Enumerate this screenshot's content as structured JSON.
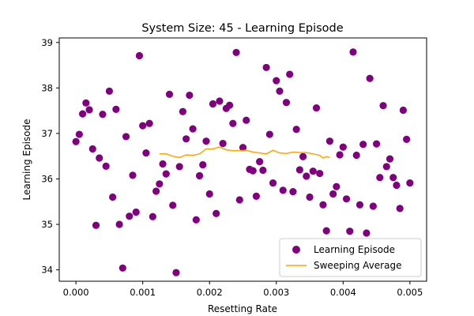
{
  "chart_data": {
    "type": "scatter",
    "title": "System Size: 45 - Learning Episode",
    "xlabel": "Resetting Rate",
    "ylabel": "Learning Episode",
    "xlim": [
      -0.00025,
      0.00525
    ],
    "ylim": [
      33.75,
      39.1
    ],
    "xticks": [
      0.0,
      0.001,
      0.002,
      0.003,
      0.004,
      0.005
    ],
    "xtick_labels": [
      "0.000",
      "0.001",
      "0.002",
      "0.003",
      "0.004",
      "0.005"
    ],
    "yticks": [
      34,
      35,
      36,
      37,
      38,
      39
    ],
    "ytick_labels": [
      "34",
      "35",
      "36",
      "37",
      "38",
      "39"
    ],
    "grid": false,
    "legend_position": "lower-right",
    "series": [
      {
        "name": "Learning Episode",
        "kind": "scatter",
        "color": "#800080",
        "points": [
          [
            0.0,
            36.82
          ],
          [
            5e-05,
            36.98
          ],
          [
            0.0001,
            37.43
          ],
          [
            0.00015,
            37.67
          ],
          [
            0.0002,
            37.52
          ],
          [
            0.00025,
            36.66
          ],
          [
            0.0003,
            34.98
          ],
          [
            0.00035,
            36.46
          ],
          [
            0.0004,
            37.42
          ],
          [
            0.00045,
            36.28
          ],
          [
            0.0005,
            37.93
          ],
          [
            0.00055,
            35.6
          ],
          [
            0.0006,
            37.53
          ],
          [
            0.00065,
            35.0
          ],
          [
            0.0007,
            34.04
          ],
          [
            0.00075,
            36.93
          ],
          [
            0.0008,
            35.18
          ],
          [
            0.00085,
            36.08
          ],
          [
            0.0009,
            35.27
          ],
          [
            0.00095,
            38.71
          ],
          [
            0.001,
            37.17
          ],
          [
            0.00105,
            36.57
          ],
          [
            0.0011,
            37.22
          ],
          [
            0.00115,
            35.17
          ],
          [
            0.0012,
            35.73
          ],
          [
            0.00125,
            35.89
          ],
          [
            0.0013,
            36.33
          ],
          [
            0.00135,
            36.11
          ],
          [
            0.0014,
            37.86
          ],
          [
            0.00145,
            35.42
          ],
          [
            0.0015,
            33.94
          ],
          [
            0.00155,
            36.27
          ],
          [
            0.0016,
            37.48
          ],
          [
            0.00165,
            36.88
          ],
          [
            0.0017,
            37.84
          ],
          [
            0.00175,
            37.1
          ],
          [
            0.0018,
            35.1
          ],
          [
            0.00185,
            36.07
          ],
          [
            0.0019,
            36.31
          ],
          [
            0.00195,
            36.83
          ],
          [
            0.002,
            35.67
          ],
          [
            0.00205,
            37.65
          ],
          [
            0.0021,
            35.24
          ],
          [
            0.00215,
            37.71
          ],
          [
            0.0022,
            36.78
          ],
          [
            0.00225,
            37.55
          ],
          [
            0.0023,
            37.62
          ],
          [
            0.00235,
            37.22
          ],
          [
            0.0024,
            38.78
          ],
          [
            0.00245,
            35.54
          ],
          [
            0.0025,
            36.69
          ],
          [
            0.00255,
            37.29
          ],
          [
            0.0026,
            36.21
          ],
          [
            0.00265,
            36.18
          ],
          [
            0.0027,
            35.62
          ],
          [
            0.00275,
            36.38
          ],
          [
            0.0028,
            36.19
          ],
          [
            0.00285,
            38.45
          ],
          [
            0.0029,
            36.98
          ],
          [
            0.00295,
            35.91
          ],
          [
            0.003,
            38.16
          ],
          [
            0.00305,
            37.93
          ],
          [
            0.0031,
            35.75
          ],
          [
            0.00315,
            37.68
          ],
          [
            0.0032,
            38.3
          ],
          [
            0.00325,
            35.72
          ],
          [
            0.0033,
            37.09
          ],
          [
            0.00335,
            36.2
          ],
          [
            0.0034,
            36.49
          ],
          [
            0.00345,
            36.06
          ],
          [
            0.0035,
            35.6
          ],
          [
            0.00355,
            36.17
          ],
          [
            0.0036,
            37.56
          ],
          [
            0.00365,
            36.12
          ],
          [
            0.0037,
            35.43
          ],
          [
            0.00375,
            34.86
          ],
          [
            0.0038,
            36.83
          ],
          [
            0.00385,
            35.67
          ],
          [
            0.0039,
            35.83
          ],
          [
            0.00395,
            36.53
          ],
          [
            0.004,
            36.7
          ],
          [
            0.00405,
            35.56
          ],
          [
            0.0041,
            34.85
          ],
          [
            0.00415,
            38.79
          ],
          [
            0.0042,
            36.52
          ],
          [
            0.00425,
            35.43
          ],
          [
            0.0043,
            36.76
          ],
          [
            0.00435,
            34.81
          ],
          [
            0.0044,
            38.21
          ],
          [
            0.00445,
            35.4
          ],
          [
            0.0045,
            36.77
          ],
          [
            0.00455,
            36.03
          ],
          [
            0.0046,
            37.61
          ],
          [
            0.00465,
            36.27
          ],
          [
            0.0047,
            36.44
          ],
          [
            0.00475,
            36.03
          ],
          [
            0.0048,
            35.86
          ],
          [
            0.00485,
            35.35
          ],
          [
            0.0049,
            37.51
          ],
          [
            0.00495,
            36.87
          ],
          [
            0.005,
            35.91
          ]
        ]
      },
      {
        "name": "Sweeping Average",
        "kind": "line",
        "color": "#ffa500",
        "points": [
          [
            0.00125,
            36.55
          ],
          [
            0.00135,
            36.55
          ],
          [
            0.00145,
            36.5
          ],
          [
            0.00155,
            36.47
          ],
          [
            0.00165,
            36.53
          ],
          [
            0.00175,
            36.52
          ],
          [
            0.00185,
            36.55
          ],
          [
            0.00195,
            36.66
          ],
          [
            0.00205,
            36.66
          ],
          [
            0.00215,
            36.7
          ],
          [
            0.00225,
            36.64
          ],
          [
            0.00235,
            36.62
          ],
          [
            0.00245,
            36.62
          ],
          [
            0.00255,
            36.63
          ],
          [
            0.00265,
            36.59
          ],
          [
            0.00275,
            36.57
          ],
          [
            0.00285,
            36.55
          ],
          [
            0.00295,
            36.63
          ],
          [
            0.00305,
            36.57
          ],
          [
            0.00315,
            36.56
          ],
          [
            0.00325,
            36.59
          ],
          [
            0.00335,
            36.58
          ],
          [
            0.00345,
            36.58
          ],
          [
            0.00355,
            36.55
          ],
          [
            0.00365,
            36.52
          ],
          [
            0.0037,
            36.46
          ],
          [
            0.00375,
            36.49
          ],
          [
            0.0038,
            36.47
          ]
        ]
      }
    ]
  }
}
